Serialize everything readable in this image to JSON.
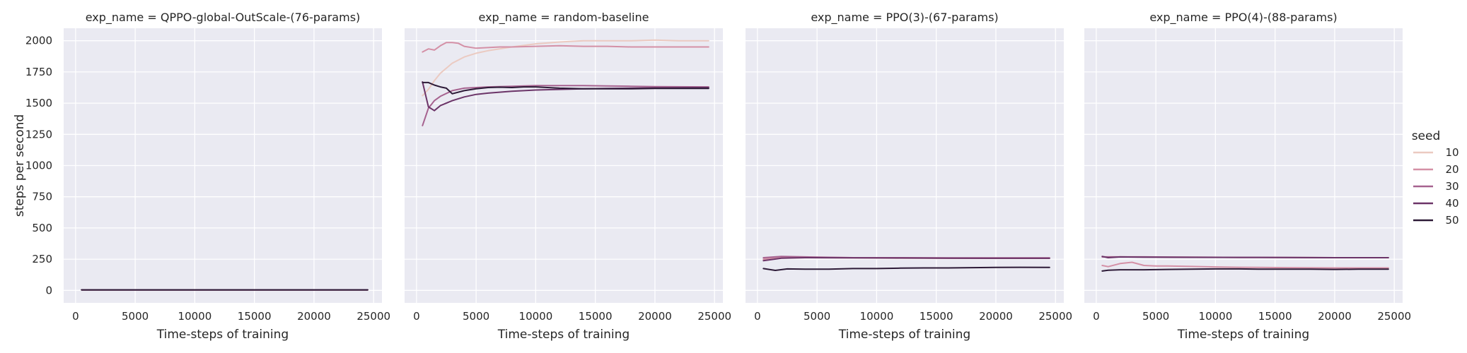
{
  "chart_data": {
    "type": "line",
    "facet_variable": "exp_name",
    "ylabel": "steps per second",
    "ylim": [
      -100,
      2100
    ],
    "yticks": [
      0,
      250,
      500,
      750,
      1000,
      1250,
      1500,
      1750,
      2000
    ],
    "xlim": [
      -1000,
      25700
    ],
    "xticks": [
      0,
      5000,
      10000,
      15000,
      20000,
      25000
    ],
    "grid": true,
    "legend": {
      "title": "seed",
      "placement": "right",
      "entries": [
        {
          "label": "10",
          "color": "#ebcac1"
        },
        {
          "label": "20",
          "color": "#d490a6"
        },
        {
          "label": "30",
          "color": "#a6628f"
        },
        {
          "label": "40",
          "color": "#6b3468"
        },
        {
          "label": "50",
          "color": "#2d1a37"
        }
      ]
    },
    "panels": [
      {
        "title": "exp_name = QPPO-global-OutScale-(76-params)",
        "xlabel": "Time-steps of training",
        "series": [
          {
            "name": "10",
            "x": [
              500,
              5000,
              10000,
              15000,
              20000,
              24500
            ],
            "y": [
              4,
              4,
              4,
              4,
              4,
              4
            ]
          },
          {
            "name": "20",
            "x": [
              500,
              5000,
              10000,
              15000,
              20000,
              24500
            ],
            "y": [
              4,
              4,
              4,
              4,
              4,
              4
            ]
          },
          {
            "name": "30",
            "x": [
              500,
              5000,
              10000,
              15000,
              20000,
              24500
            ],
            "y": [
              4,
              4,
              4,
              4,
              4,
              4
            ]
          },
          {
            "name": "40",
            "x": [
              500,
              5000,
              10000,
              15000,
              20000,
              24500
            ],
            "y": [
              4,
              4,
              4,
              4,
              4,
              4
            ]
          },
          {
            "name": "50",
            "x": [
              500,
              5000,
              10000,
              15000,
              20000,
              24500
            ],
            "y": [
              4,
              4,
              4,
              4,
              4,
              4
            ]
          }
        ]
      },
      {
        "title": "exp_name = random-baseline",
        "xlabel": "Time-steps of training",
        "series": [
          {
            "name": "10",
            "x": [
              500,
              1000,
              1500,
              2000,
              3000,
              4000,
              5000,
              6000,
              8000,
              10000,
              12000,
              14000,
              16000,
              18000,
              20000,
              22000,
              24500
            ],
            "y": [
              1560,
              1610,
              1680,
              1740,
              1820,
              1870,
              1900,
              1920,
              1950,
              1975,
              1990,
              2000,
              2000,
              2000,
              2005,
              2000,
              2000
            ]
          },
          {
            "name": "20",
            "x": [
              500,
              1000,
              1500,
              2000,
              2500,
              3000,
              3500,
              4000,
              5000,
              6000,
              7000,
              8000,
              10000,
              12000,
              14000,
              16000,
              18000,
              20000,
              22000,
              24500
            ],
            "y": [
              1910,
              1935,
              1925,
              1960,
              1985,
              1985,
              1980,
              1955,
              1940,
              1945,
              1950,
              1950,
              1955,
              1960,
              1955,
              1955,
              1950,
              1950,
              1950,
              1950
            ]
          },
          {
            "name": "30",
            "x": [
              500,
              1000,
              1500,
              2000,
              3000,
              4000,
              5000,
              6000,
              8000,
              10000,
              12000,
              14000,
              16000,
              18000,
              20000,
              24500
            ],
            "y": [
              1320,
              1460,
              1520,
              1555,
              1600,
              1620,
              1625,
              1630,
              1635,
              1640,
              1640,
              1640,
              1638,
              1635,
              1632,
              1630
            ]
          },
          {
            "name": "40",
            "x": [
              500,
              1000,
              1500,
              2000,
              3000,
              4000,
              5000,
              6000,
              8000,
              10000,
              12000,
              14000,
              16000,
              18000,
              20000,
              24500
            ],
            "y": [
              1670,
              1470,
              1440,
              1480,
              1520,
              1550,
              1570,
              1580,
              1595,
              1605,
              1610,
              1615,
              1618,
              1620,
              1622,
              1625
            ]
          },
          {
            "name": "50",
            "x": [
              500,
              1000,
              1500,
              2000,
              2500,
              3000,
              4000,
              5000,
              6000,
              7000,
              8000,
              9000,
              10000,
              12000,
              14000,
              16000,
              18000,
              20000,
              22000,
              24500
            ],
            "y": [
              1665,
              1665,
              1645,
              1630,
              1620,
              1575,
              1600,
              1615,
              1625,
              1628,
              1625,
              1630,
              1630,
              1620,
              1615,
              1615,
              1615,
              1618,
              1618,
              1618
            ]
          }
        ]
      },
      {
        "title": "exp_name = PPO(3)-(67-params)",
        "xlabel": "Time-steps of training",
        "series": [
          {
            "name": "10",
            "x": [
              500,
              2000,
              4000,
              8000,
              12000,
              16000,
              20000,
              24500
            ],
            "y": [
              240,
              260,
              262,
              260,
              258,
              258,
              257,
              257
            ]
          },
          {
            "name": "20",
            "x": [
              500,
              2000,
              4000,
              8000,
              12000,
              16000,
              20000,
              24500
            ],
            "y": [
              250,
              268,
              265,
              262,
              260,
              258,
              258,
              258
            ]
          },
          {
            "name": "30",
            "x": [
              500,
              2000,
              4000,
              8000,
              12000,
              16000,
              20000,
              24500
            ],
            "y": [
              262,
              272,
              268,
              262,
              262,
              260,
              260,
              260
            ]
          },
          {
            "name": "40",
            "x": [
              500,
              2000,
              4000,
              8000,
              12000,
              16000,
              20000,
              24500
            ],
            "y": [
              238,
              258,
              262,
              260,
              259,
              258,
              257,
              257
            ]
          },
          {
            "name": "50",
            "x": [
              500,
              1500,
              2500,
              4000,
              6000,
              8000,
              10000,
              12000,
              14000,
              16000,
              18000,
              20000,
              22000,
              24500
            ],
            "y": [
              175,
              160,
              172,
              170,
              170,
              175,
              175,
              178,
              180,
              180,
              182,
              184,
              185,
              184
            ]
          }
        ]
      },
      {
        "title": "exp_name = PPO(4)-(88-params)",
        "xlabel": "Time-steps of training",
        "series": [
          {
            "name": "10",
            "x": [
              500,
              2000,
              4000,
              8000,
              12000,
              16000,
              20000,
              24500
            ],
            "y": [
              268,
              268,
              268,
              266,
              264,
              264,
              262,
              262
            ]
          },
          {
            "name": "20",
            "x": [
              500,
              1000,
              2000,
              3000,
              4000,
              5000,
              6000,
              8000,
              10000,
              12000,
              16000,
              20000,
              24500
            ],
            "y": [
              200,
              190,
              215,
              225,
              200,
              195,
              195,
              192,
              188,
              185,
              182,
              180,
              180
            ]
          },
          {
            "name": "30",
            "x": [
              500,
              2000,
              4000,
              8000,
              12000,
              16000,
              20000,
              24500
            ],
            "y": [
              268,
              268,
              268,
              266,
              264,
              263,
              262,
              262
            ]
          },
          {
            "name": "40",
            "x": [
              500,
              1000,
              2000,
              4000,
              8000,
              12000,
              16000,
              20000,
              24500
            ],
            "y": [
              272,
              262,
              268,
              266,
              265,
              264,
              263,
              262,
              262
            ]
          },
          {
            "name": "50",
            "x": [
              500,
              1000,
              2000,
              4000,
              6000,
              8000,
              10000,
              12000,
              14000,
              16000,
              18000,
              20000,
              22000,
              24500
            ],
            "y": [
              155,
              162,
              165,
              165,
              168,
              170,
              172,
              172,
              170,
              170,
              170,
              168,
              170,
              170
            ]
          }
        ]
      }
    ]
  }
}
